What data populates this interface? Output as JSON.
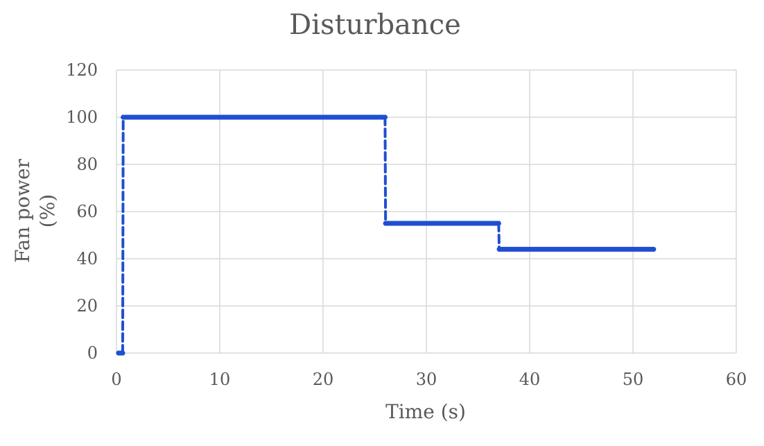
{
  "chart_data": {
    "type": "scatter",
    "title": "Disturbance",
    "xlabel": "Time (s)",
    "ylabel_lines": [
      "Fan power",
      "(%)"
    ],
    "xlim": [
      0,
      60
    ],
    "ylim": [
      0,
      120
    ],
    "x_ticks": [
      0,
      10,
      20,
      30,
      40,
      50,
      60
    ],
    "y_ticks": [
      0,
      20,
      40,
      60,
      80,
      100,
      120
    ],
    "grid": true,
    "series_color": "#1f4fd1",
    "series": [
      {
        "points": [
          [
            0.2,
            0
          ],
          [
            0.6,
            0
          ],
          [
            0.65,
            100
          ],
          [
            26.0,
            100
          ],
          [
            26.05,
            55
          ],
          [
            37.0,
            55
          ],
          [
            37.05,
            44
          ],
          [
            52.0,
            44
          ]
        ]
      }
    ]
  }
}
